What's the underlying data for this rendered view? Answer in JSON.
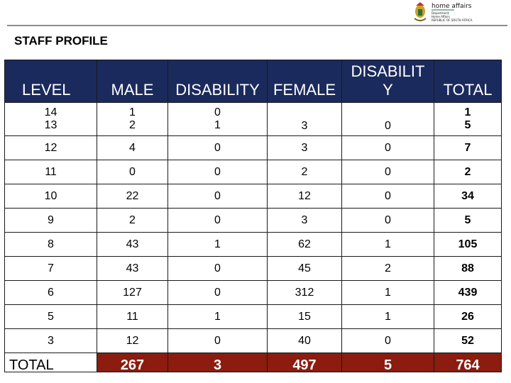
{
  "header": {
    "logo_text_line1": "home affairs",
    "logo_text_line2": "Department:",
    "logo_text_line3": "Home Affairs",
    "logo_text_line4": "REPUBLIC OF SOUTH AFRICA"
  },
  "page_title": "STAFF PROFILE",
  "table": {
    "headers": {
      "level": "LEVEL",
      "male": "MALE",
      "disability1": "DISABILITY",
      "female": "FEMALE",
      "disability2_line1": "DISABILIT",
      "disability2_line2": "Y",
      "total": "TOTAL"
    },
    "first_row": {
      "level": [
        "14",
        "13"
      ],
      "male": [
        "1",
        "2"
      ],
      "disability1": [
        "0",
        "1"
      ],
      "female": "3",
      "disability2": "0",
      "total": [
        "1",
        "5"
      ]
    },
    "rows": [
      {
        "level": "12",
        "male": "4",
        "disability1": "0",
        "female": "3",
        "disability2": "0",
        "total": "7"
      },
      {
        "level": "11",
        "male": "0",
        "disability1": "0",
        "female": "2",
        "disability2": "0",
        "total": "2"
      },
      {
        "level": "10",
        "male": "22",
        "disability1": "0",
        "female": "12",
        "disability2": "0",
        "total": "34"
      },
      {
        "level": "9",
        "male": "2",
        "disability1": "0",
        "female": "3",
        "disability2": "0",
        "total": "5"
      },
      {
        "level": "8",
        "male": "43",
        "disability1": "1",
        "female": "62",
        "disability2": "1",
        "total": "105"
      },
      {
        "level": "7",
        "male": "43",
        "disability1": "0",
        "female": "45",
        "disability2": "2",
        "total": "88"
      },
      {
        "level": "6",
        "male": "127",
        "disability1": "0",
        "female": "312",
        "disability2": "1",
        "total": "439"
      },
      {
        "level": "5",
        "male": "11",
        "disability1": "1",
        "female": "15",
        "disability2": "1",
        "total": "26"
      },
      {
        "level": "3",
        "male": "12",
        "disability1": "0",
        "female": "40",
        "disability2": "0",
        "total": "52"
      }
    ],
    "totals": {
      "label": "TOTAL",
      "male": "267",
      "disability1": "3",
      "female": "497",
      "disability2": "5",
      "total": "764"
    }
  },
  "colors": {
    "header_bg": "#1b2a5c",
    "total_bg": "#8b1c0f",
    "rule": "#8c8c8c"
  }
}
